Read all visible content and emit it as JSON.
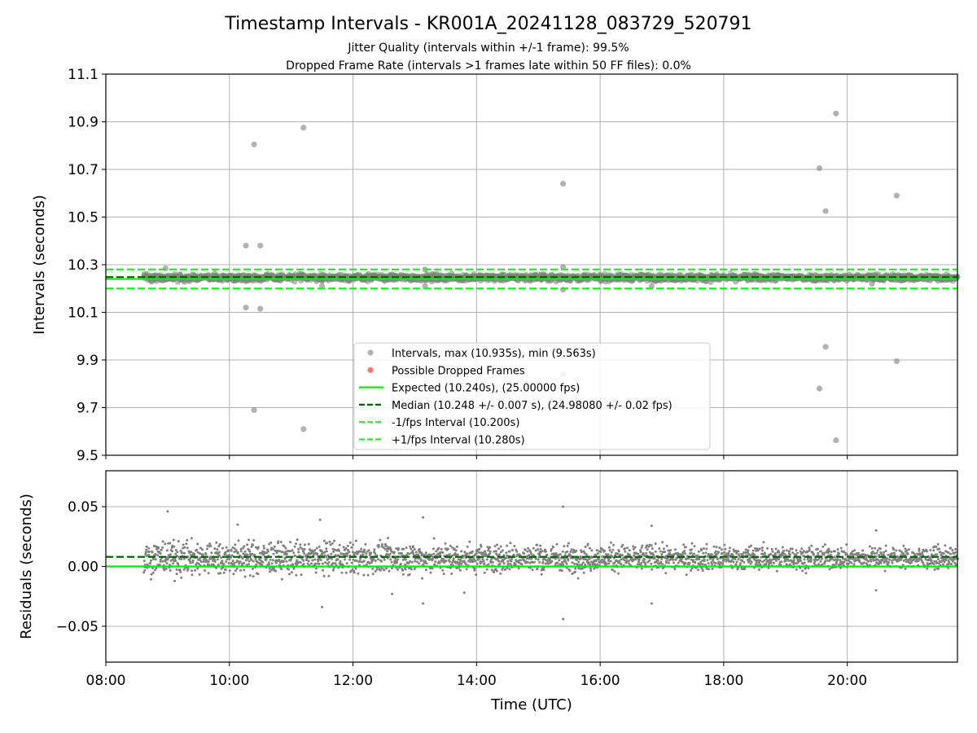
{
  "figure": {
    "title": "Timestamp Intervals - KR001A_20241128_083729_520791",
    "subtitle_line1": "Jitter Quality (intervals within +/-1 frame): 99.5%",
    "subtitle_line2": "Dropped Frame Rate (intervals >1 frames late within 50 FF files): 0.0%"
  },
  "colors": {
    "points": "#808080",
    "dropped": "#ff0000",
    "expected": "#00ee00",
    "median": "#006400",
    "bounds": "#22ee22",
    "grid": "#b0b0b0"
  },
  "chart_data": [
    {
      "type": "scatter",
      "panel": "intervals",
      "ylabel": "Intervals (seconds)",
      "xlim": [
        "08:00",
        "21:47"
      ],
      "ylim": [
        9.5,
        11.1
      ],
      "yticks": [
        "9.5",
        "9.7",
        "9.9",
        "10.1",
        "10.3",
        "10.5",
        "10.7",
        "10.9",
        "11.1"
      ],
      "grid": true,
      "legend_position": "lower-center",
      "legend": [
        {
          "label": "Intervals, max (10.935s), min (9.563s)",
          "kind": "marker",
          "color": "#808080"
        },
        {
          "label": "Possible Dropped Frames",
          "kind": "marker",
          "color": "#ff0000"
        },
        {
          "label": "Expected (10.240s), (25.00000 fps)",
          "kind": "solid",
          "color": "#00ee00"
        },
        {
          "label": "Median (10.248 +/- 0.007 s), (24.98080 +/- 0.02 fps)",
          "kind": "dashed",
          "color": "#006400"
        },
        {
          "label": "-1/fps Interval (10.200s)",
          "kind": "dashed",
          "color": "#22ee22"
        },
        {
          "label": "+1/fps Interval (10.280s)",
          "kind": "dashed",
          "color": "#22ee22"
        }
      ],
      "reference_lines": {
        "expected": 10.24,
        "median": 10.248,
        "lower_bound": 10.2,
        "upper_bound": 10.28
      },
      "band": {
        "x_start": "08:37",
        "x_end": "21:47",
        "y_center": 10.246,
        "y_spread": 0.012
      },
      "outliers": [
        {
          "x": "08:58",
          "y": 10.285
        },
        {
          "x": "10:16",
          "y": 10.38
        },
        {
          "x": "10:16",
          "y": 10.12
        },
        {
          "x": "10:24",
          "y": 10.805
        },
        {
          "x": "10:24",
          "y": 9.69
        },
        {
          "x": "10:30",
          "y": 10.38
        },
        {
          "x": "10:30",
          "y": 10.115
        },
        {
          "x": "11:12",
          "y": 10.875
        },
        {
          "x": "11:12",
          "y": 9.61
        },
        {
          "x": "11:30",
          "y": 10.21
        },
        {
          "x": "13:10",
          "y": 10.28
        },
        {
          "x": "13:10",
          "y": 10.21
        },
        {
          "x": "15:24",
          "y": 10.64
        },
        {
          "x": "15:24",
          "y": 10.29
        },
        {
          "x": "15:24",
          "y": 10.195
        },
        {
          "x": "15:24",
          "y": 9.84
        },
        {
          "x": "16:50",
          "y": 10.21
        },
        {
          "x": "19:33",
          "y": 10.705
        },
        {
          "x": "19:33",
          "y": 9.78
        },
        {
          "x": "19:39",
          "y": 10.525
        },
        {
          "x": "19:39",
          "y": 9.955
        },
        {
          "x": "19:49",
          "y": 10.935
        },
        {
          "x": "19:49",
          "y": 9.563
        },
        {
          "x": "20:24",
          "y": 10.22
        },
        {
          "x": "20:48",
          "y": 10.59
        },
        {
          "x": "20:48",
          "y": 9.895
        }
      ]
    },
    {
      "type": "scatter",
      "panel": "residuals",
      "xlabel": "Time (UTC)",
      "ylabel": "Residuals (seconds)",
      "xlim": [
        "08:00",
        "21:47"
      ],
      "ylim": [
        -0.08,
        0.08
      ],
      "xticks": [
        "08:00",
        "10:00",
        "12:00",
        "14:00",
        "16:00",
        "18:00",
        "20:00"
      ],
      "yticks": [
        "0.05",
        "0.00",
        "−0.05"
      ],
      "ytick_values": [
        0.05,
        0.0,
        -0.05
      ],
      "grid": true,
      "reference_lines": {
        "expected": 0.0,
        "median": 0.008
      },
      "band": {
        "x_start": "08:37",
        "x_end": "21:47",
        "y_center": 0.007,
        "y_spread": 0.009
      },
      "outliers": [
        {
          "x": "09:00",
          "y": 0.046
        },
        {
          "x": "10:08",
          "y": 0.035
        },
        {
          "x": "11:28",
          "y": 0.039
        },
        {
          "x": "11:30",
          "y": -0.034
        },
        {
          "x": "12:38",
          "y": -0.023
        },
        {
          "x": "13:08",
          "y": 0.041
        },
        {
          "x": "13:08",
          "y": -0.031
        },
        {
          "x": "13:48",
          "y": -0.022
        },
        {
          "x": "15:24",
          "y": 0.05
        },
        {
          "x": "15:24",
          "y": -0.044
        },
        {
          "x": "16:50",
          "y": 0.034
        },
        {
          "x": "16:50",
          "y": -0.031
        },
        {
          "x": "20:28",
          "y": 0.03
        },
        {
          "x": "20:28",
          "y": -0.02
        }
      ]
    }
  ]
}
